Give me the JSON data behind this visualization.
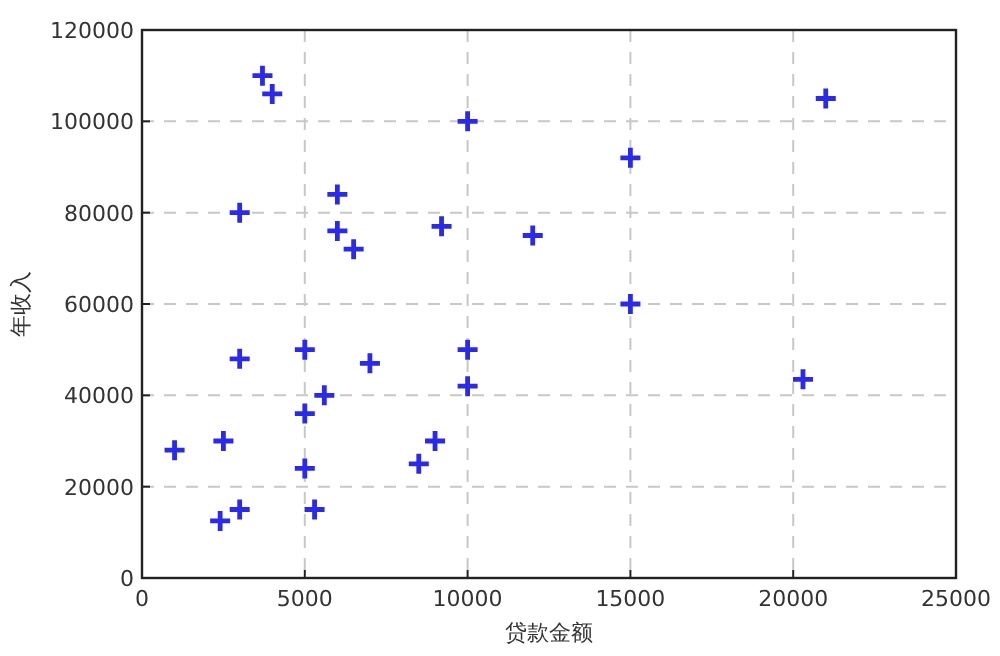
{
  "chart_data": {
    "type": "scatter",
    "xlabel": "贷款金额",
    "ylabel": "年收入",
    "x": [
      3700,
      4000,
      10000,
      21000,
      15000,
      3000,
      6000,
      6000,
      6500,
      9200,
      12000,
      15000,
      10000,
      5000,
      3000,
      7000,
      10000,
      20300,
      5600,
      5000,
      9000,
      8500,
      2500,
      1000,
      5000,
      3000,
      5300,
      2400
    ],
    "series": [
      {
        "color": "#2a2ae8",
        "values": [
          110000,
          106000,
          100000,
          105000,
          92000,
          80000,
          84000,
          76000,
          72000,
          77000,
          75000,
          60000,
          50000,
          50000,
          48000,
          47000,
          42000,
          43500,
          40000,
          36000,
          30000,
          25000,
          30000,
          28000,
          24000,
          15000,
          15000,
          12500
        ]
      }
    ],
    "xlim": [
      0,
      25000
    ],
    "xticks": [
      0,
      5000,
      10000,
      15000,
      20000,
      25000
    ],
    "ylim": [
      0,
      120000
    ],
    "yticks": [
      0,
      20000,
      40000,
      60000,
      80000,
      100000,
      120000
    ],
    "grid": true,
    "marker": "cross"
  }
}
